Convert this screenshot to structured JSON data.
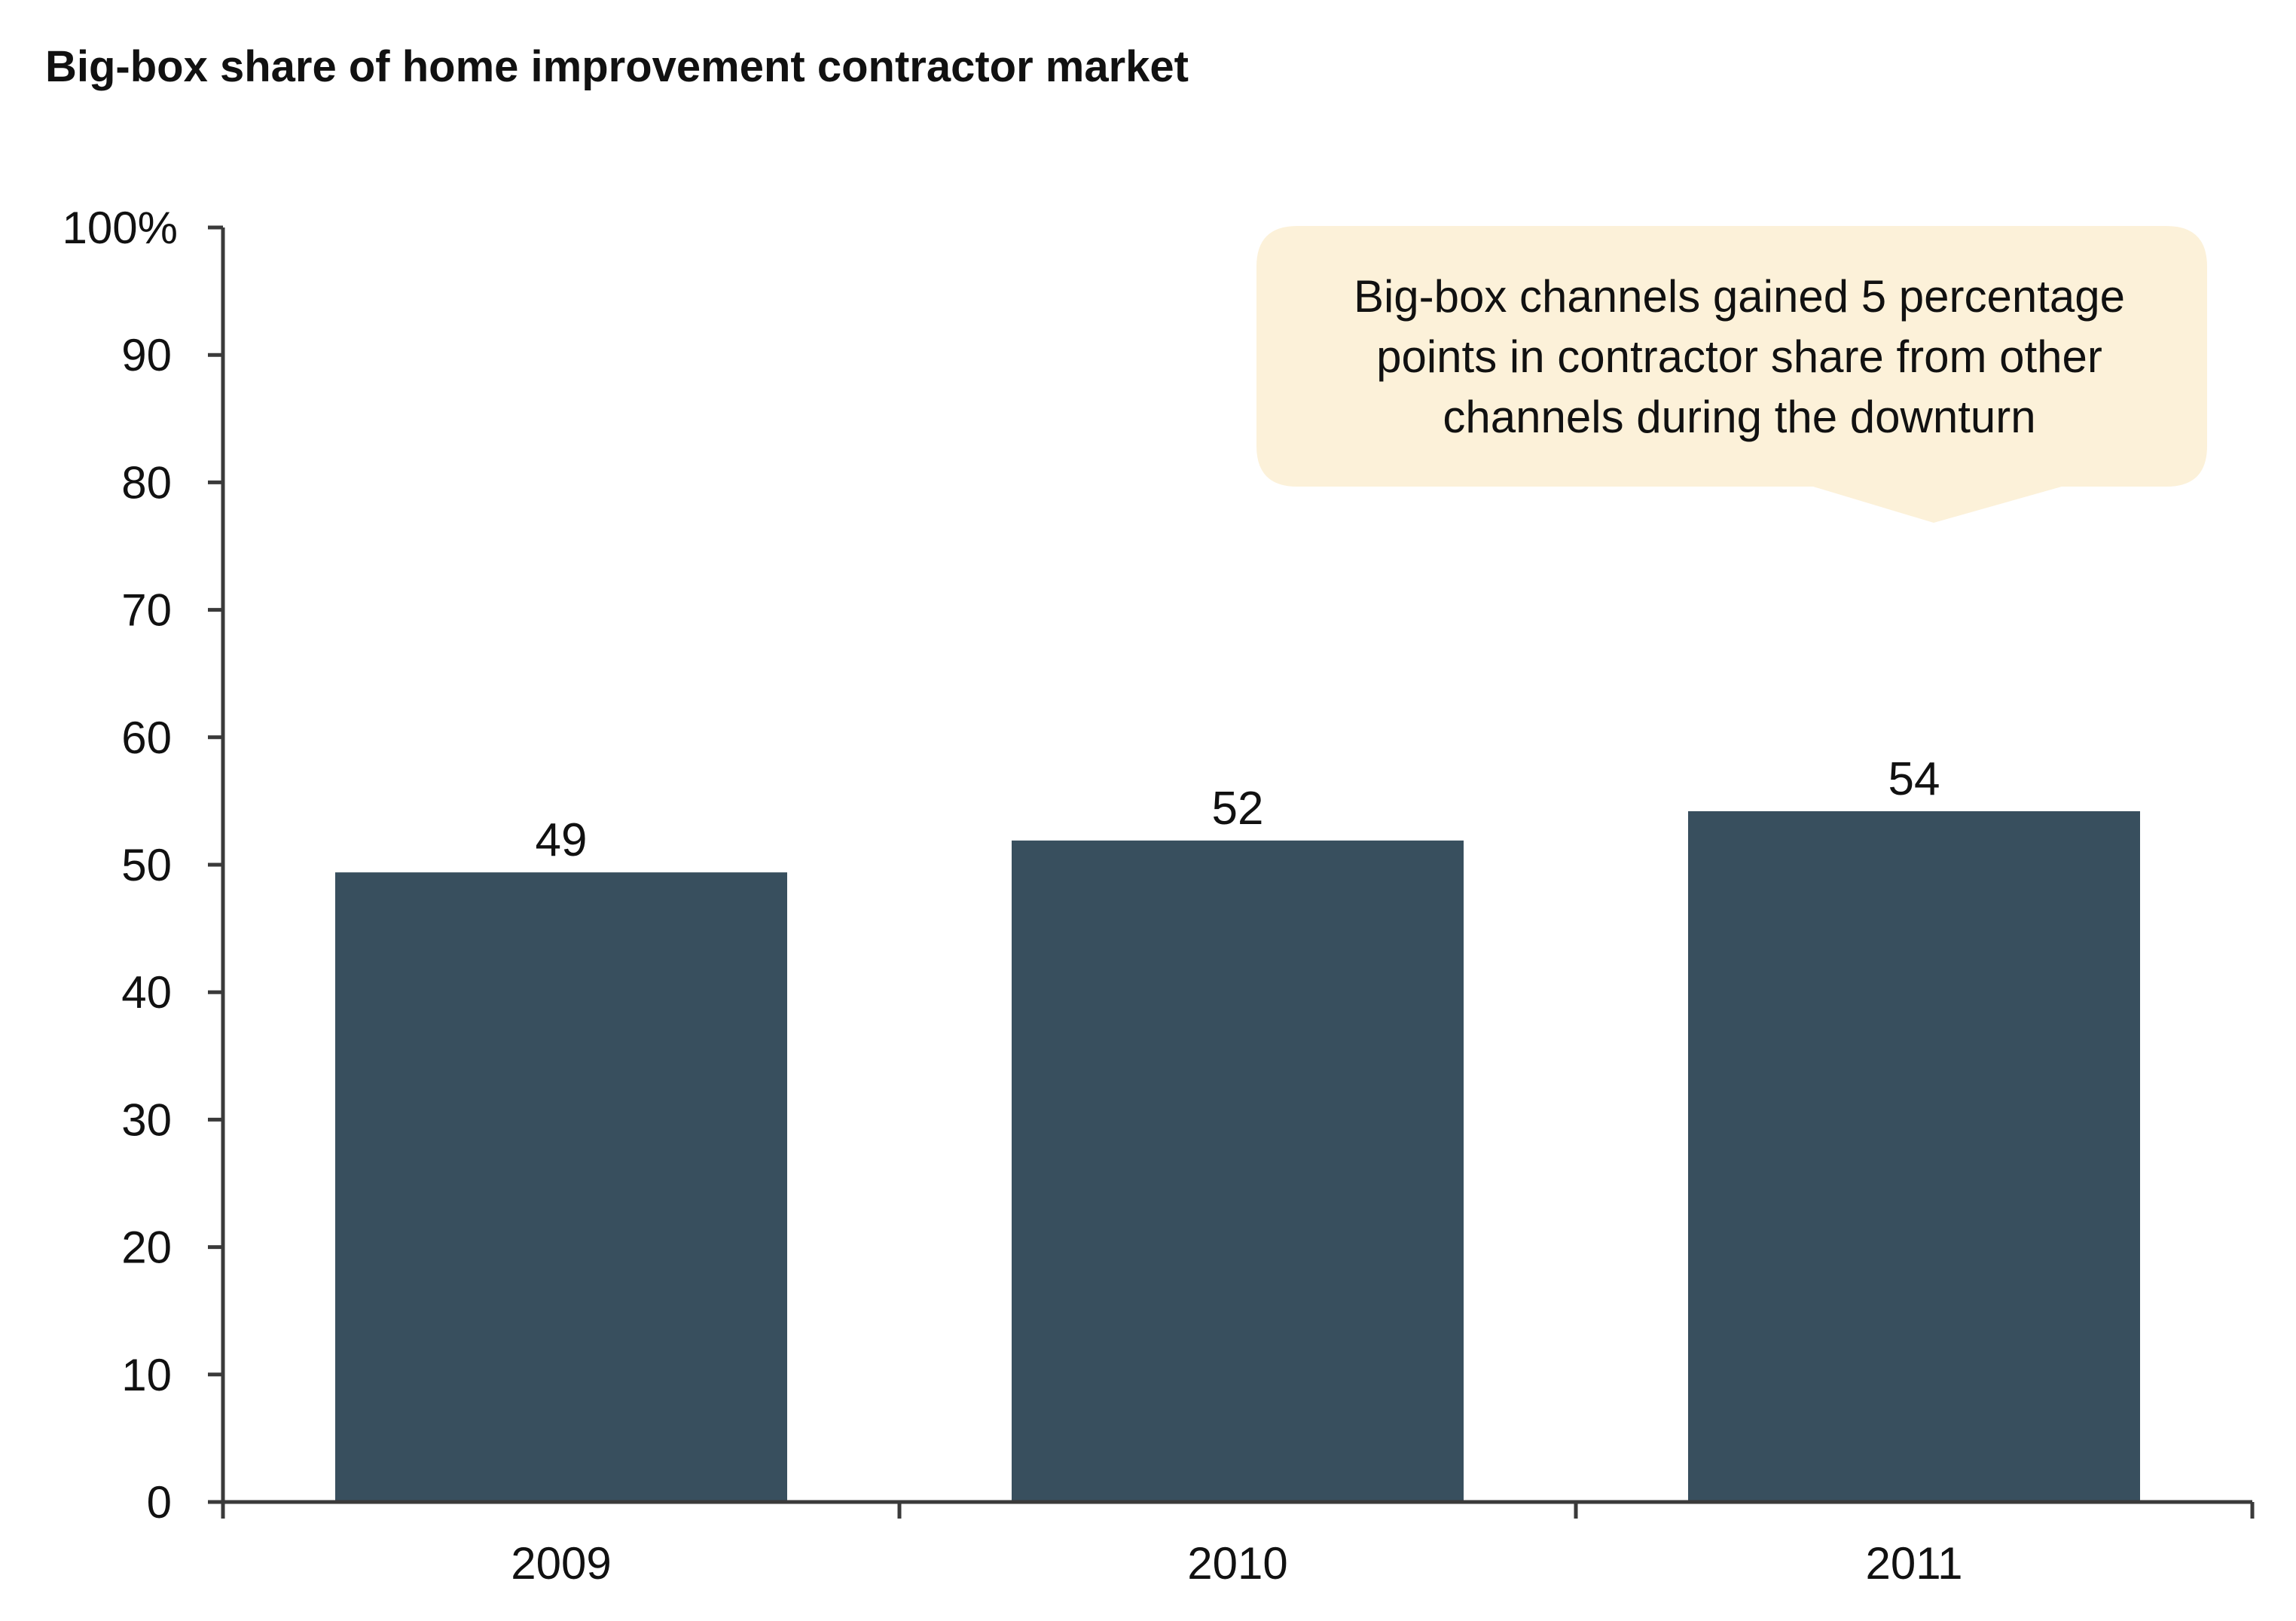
{
  "chart_data": {
    "type": "bar",
    "title": "Big-box share of home improvement contractor market",
    "categories": [
      "2009",
      "2010",
      "2011"
    ],
    "values": [
      49.4,
      51.9,
      54.2
    ],
    "data_labels": [
      "49",
      "52",
      "54"
    ],
    "ylim": [
      0,
      100
    ],
    "yticks": [
      0,
      10,
      20,
      30,
      40,
      50,
      60,
      70,
      80,
      90,
      100
    ],
    "ytick_labels": [
      "0",
      "10",
      "20",
      "30",
      "40",
      "50",
      "60",
      "70",
      "80",
      "90",
      "100%"
    ],
    "xlabel": "",
    "ylabel": "",
    "grid": false,
    "legend": "none",
    "bar_color": "#384f5e",
    "annotation": {
      "lines": [
        "Big-box channels gained 5 percentage",
        "points in contractor share from other",
        "channels during the downturn"
      ],
      "fill_color": "#fcf1d9",
      "points_to": "2011"
    }
  }
}
